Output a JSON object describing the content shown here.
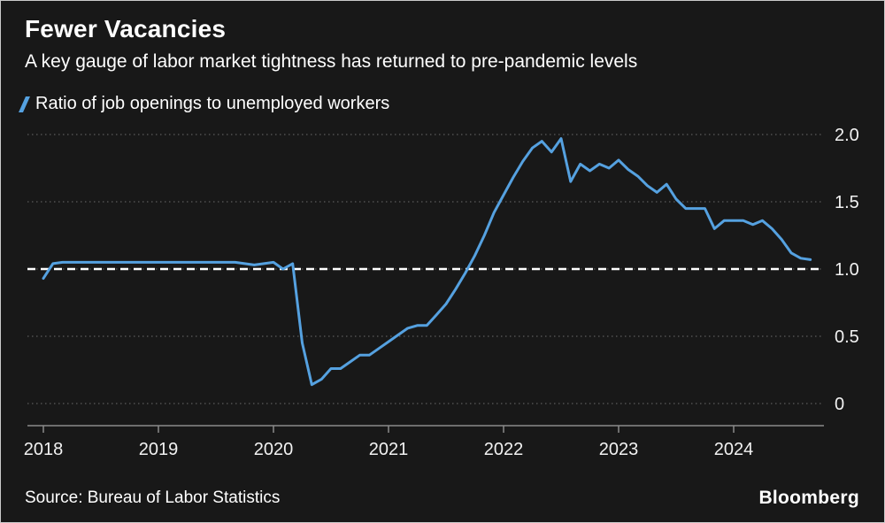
{
  "header": {
    "title": "Fewer Vacancies",
    "subtitle": "A key gauge of labor market tightness has returned to pre-pandemic levels"
  },
  "legend": {
    "label": "Ratio of job openings to unemployed workers"
  },
  "footer": {
    "source": "Source: Bureau of Labor Statistics",
    "brand": "Bloomberg"
  },
  "colors": {
    "background": "#181818",
    "line": "#55a1e0",
    "text": "#ffffff",
    "grid": "#5c5c5c",
    "axis": "#8a8a8a",
    "reference": "#ffffff"
  },
  "chart_data": {
    "type": "line",
    "title": "Fewer Vacancies",
    "series_name": "Ratio of job openings to unemployed workers",
    "frequency": "monthly",
    "x_start_year": 2018,
    "values": [
      0.93,
      1.04,
      1.05,
      1.05,
      1.05,
      1.05,
      1.05,
      1.05,
      1.05,
      1.05,
      1.05,
      1.05,
      1.05,
      1.05,
      1.05,
      1.05,
      1.05,
      1.05,
      1.05,
      1.05,
      1.05,
      1.04,
      1.03,
      1.04,
      1.05,
      1.0,
      1.04,
      0.45,
      0.14,
      0.18,
      0.26,
      0.26,
      0.31,
      0.36,
      0.36,
      0.41,
      0.46,
      0.51,
      0.56,
      0.58,
      0.58,
      0.66,
      0.74,
      0.85,
      0.97,
      1.1,
      1.25,
      1.42,
      1.55,
      1.68,
      1.8,
      1.9,
      1.95,
      1.87,
      1.97,
      1.65,
      1.78,
      1.73,
      1.78,
      1.75,
      1.81,
      1.74,
      1.69,
      1.62,
      1.57,
      1.63,
      1.52,
      1.45,
      1.45,
      1.45,
      1.3,
      1.36,
      1.36,
      1.36,
      1.33,
      1.36,
      1.3,
      1.22,
      1.12,
      1.08,
      1.07
    ],
    "xticks": [
      2018,
      2019,
      2020,
      2021,
      2022,
      2023,
      2024
    ],
    "ytick_values": [
      2.0,
      1.5,
      1.0,
      0.5,
      0
    ],
    "ytick_labels": [
      "2.0",
      "1.5",
      "1.0",
      "0.5",
      "0"
    ],
    "ylim": [
      0,
      2.1
    ],
    "xlim": [
      2017.85,
      2024.8
    ],
    "reference_line": 1.0,
    "grid": "dotted horizontal, labels on right",
    "legend_position": "top-left"
  }
}
